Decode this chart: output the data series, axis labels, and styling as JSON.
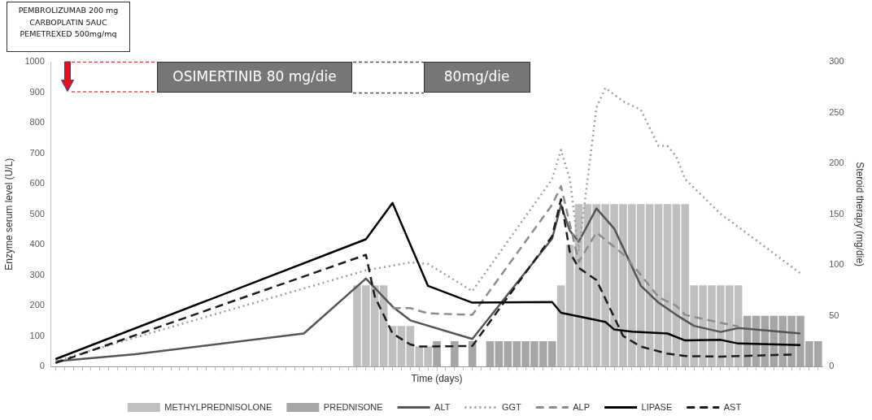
{
  "chart_data": {
    "type": "line",
    "xlabel": "Time (days)",
    "ylabel": "Enzyme serum level (U/L)",
    "y2label": "Steroid therapy (mg/die)",
    "annotations": [
      "PEMBROLIZUMAB 200 mg\nCARBOPLATIN 5AUC\nPEMETREXED 500mg/mq",
      "OSIMERTINIB 80 mg/die",
      "80mg/die"
    ],
    "categories": [
      null,
      null,
      null,
      null,
      null,
      null,
      null,
      null,
      null,
      null,
      null,
      null,
      null,
      null,
      null,
      null,
      null,
      null,
      null,
      null,
      null,
      null,
      null,
      null,
      null,
      null,
      null,
      null,
      null,
      null,
      null,
      null,
      null,
      null,
      null,
      null,
      null,
      null,
      null,
      null,
      null,
      null,
      null,
      null,
      null,
      null,
      null,
      null,
      null,
      null,
      null,
      null,
      null,
      null,
      null,
      null,
      null,
      null,
      null,
      null,
      null,
      null,
      null,
      null,
      null,
      null,
      null,
      null,
      null,
      null,
      null,
      null,
      null,
      null,
      null,
      null,
      null,
      null,
      null,
      null,
      null,
      null,
      null,
      null,
      null,
      null,
      null
    ],
    "ylim": [
      0,
      1000
    ],
    "yticks": [
      0,
      100,
      200,
      300,
      400,
      500,
      600,
      700,
      800,
      900,
      1000
    ],
    "y2lim": [
      0,
      300
    ],
    "y2ticks": [
      0,
      50,
      100,
      150,
      200,
      250,
      300
    ],
    "grid": false,
    "legend": "bottom",
    "tick_labels": "y",
    "marker": "none",
    "series": [
      {
        "name": "METHYLPREDNISOLONE",
        "type": "bar",
        "axis": "y2",
        "color": "#bfbfbf",
        "values": [
          null,
          null,
          null,
          null,
          null,
          null,
          null,
          null,
          null,
          null,
          null,
          null,
          null,
          null,
          null,
          null,
          null,
          null,
          null,
          null,
          null,
          null,
          null,
          null,
          null,
          null,
          null,
          null,
          null,
          null,
          null,
          null,
          null,
          null,
          80,
          80,
          80,
          80,
          40,
          40,
          40,
          20,
          20,
          null,
          null,
          null,
          null,
          null,
          null,
          null,
          null,
          null,
          null,
          null,
          null,
          null,
          null,
          80,
          120,
          160,
          160,
          160,
          160,
          160,
          160,
          160,
          160,
          160,
          160,
          160,
          160,
          160,
          80,
          80,
          80,
          80,
          80,
          80,
          null,
          null,
          null,
          null,
          null,
          null,
          null,
          null,
          null
        ]
      },
      {
        "name": "PREDNISONE",
        "type": "bar",
        "axis": "y2",
        "color": "#a6a6a6",
        "values": [
          null,
          null,
          null,
          null,
          null,
          null,
          null,
          null,
          null,
          null,
          null,
          null,
          null,
          null,
          null,
          null,
          null,
          null,
          null,
          null,
          null,
          null,
          null,
          null,
          null,
          null,
          null,
          null,
          null,
          null,
          null,
          null,
          null,
          null,
          null,
          null,
          null,
          null,
          null,
          null,
          null,
          null,
          null,
          25,
          null,
          25,
          null,
          25,
          null,
          25,
          25,
          25,
          25,
          25,
          25,
          25,
          25,
          null,
          null,
          null,
          null,
          null,
          null,
          null,
          null,
          null,
          null,
          null,
          null,
          null,
          null,
          null,
          null,
          null,
          null,
          null,
          null,
          null,
          50,
          50,
          50,
          50,
          50,
          50,
          50,
          25,
          25
        ]
      },
      {
        "name": "ALT",
        "type": "line",
        "line_style": "solid",
        "color": "#555555",
        "values": [
          18,
          null,
          null,
          null,
          null,
          null,
          null,
          null,
          null,
          41,
          null,
          null,
          null,
          null,
          null,
          null,
          null,
          null,
          null,
          null,
          null,
          null,
          null,
          null,
          null,
          null,
          null,
          null,
          109,
          null,
          null,
          null,
          null,
          null,
          null,
          289,
          null,
          null,
          197,
          null,
          152,
          null,
          null,
          null,
          null,
          null,
          null,
          91,
          null,
          null,
          null,
          null,
          null,
          null,
          null,
          null,
          420,
          530,
          446,
          410,
          null,
          519,
          null,
          453,
          null,
          null,
          266,
          null,
          210,
          null,
          170,
          null,
          134,
          null,
          null,
          114,
          null,
          127,
          null,
          null,
          null,
          null,
          null,
          null,
          109,
          null,
          null
        ]
      },
      {
        "name": "GGT",
        "type": "line",
        "line_style": "dotted",
        "color": "#9e9e9e",
        "values": [
          18,
          null,
          null,
          null,
          null,
          null,
          null,
          null,
          null,
          96,
          null,
          null,
          null,
          null,
          null,
          null,
          null,
          null,
          null,
          null,
          null,
          null,
          null,
          null,
          null,
          null,
          null,
          null,
          null,
          null,
          null,
          null,
          null,
          null,
          null,
          316,
          null,
          null,
          null,
          null,
          342,
          null,
          337,
          null,
          null,
          null,
          null,
          248,
          null,
          null,
          null,
          null,
          null,
          null,
          null,
          null,
          615,
          711,
          615,
          380,
          null,
          850,
          914,
          null,
          870,
          null,
          843,
          null,
          724,
          724,
          689,
          615,
          null,
          null,
          null,
          501,
          null,
          null,
          null,
          415,
          null,
          null,
          null,
          null,
          306,
          null,
          null
        ]
      },
      {
        "name": "ALP",
        "type": "line",
        "line_style": "dashed",
        "color": "#8c8c8c",
        "values": [
          null,
          null,
          null,
          null,
          null,
          null,
          null,
          null,
          null,
          null,
          null,
          null,
          null,
          null,
          null,
          null,
          null,
          null,
          null,
          null,
          null,
          null,
          null,
          null,
          null,
          null,
          null,
          null,
          null,
          null,
          null,
          null,
          null,
          null,
          null,
          null,
          null,
          null,
          192,
          null,
          192,
          null,
          175,
          null,
          null,
          null,
          null,
          170,
          null,
          null,
          null,
          null,
          null,
          null,
          null,
          null,
          531,
          592,
          null,
          344,
          null,
          440,
          null,
          null,
          369,
          null,
          301,
          null,
          228,
          null,
          200,
          170,
          null,
          null,
          null,
          144,
          null,
          132,
          null,
          null,
          null,
          null,
          null,
          null,
          null,
          null,
          null
        ]
      },
      {
        "name": "LIPASE",
        "type": "line",
        "line_style": "solid",
        "color": "#000000",
        "values": [
          25,
          null,
          null,
          null,
          null,
          null,
          null,
          null,
          null,
          null,
          null,
          null,
          null,
          null,
          null,
          null,
          null,
          null,
          null,
          null,
          null,
          null,
          null,
          null,
          null,
          null,
          null,
          null,
          null,
          null,
          null,
          null,
          null,
          null,
          null,
          418,
          null,
          null,
          537,
          null,
          null,
          null,
          265,
          null,
          null,
          null,
          null,
          210,
          null,
          null,
          null,
          null,
          null,
          null,
          null,
          null,
          212,
          177,
          null,
          null,
          null,
          null,
          147,
          122,
          null,
          115,
          null,
          null,
          null,
          109,
          null,
          86,
          null,
          null,
          null,
          88,
          null,
          76,
          null,
          null,
          null,
          null,
          null,
          null,
          71,
          null,
          null
        ]
      },
      {
        "name": "AST",
        "type": "line",
        "line_style": "dashed",
        "color": "#1c1c1c",
        "values": [
          12,
          null,
          null,
          null,
          null,
          null,
          null,
          null,
          null,
          null,
          null,
          null,
          null,
          null,
          null,
          null,
          null,
          null,
          null,
          null,
          null,
          null,
          null,
          null,
          null,
          null,
          null,
          null,
          null,
          null,
          null,
          null,
          null,
          null,
          null,
          367,
          230,
          null,
          109,
          null,
          73,
          66,
          null,
          null,
          null,
          null,
          null,
          68,
          null,
          null,
          null,
          null,
          null,
          null,
          null,
          null,
          428,
          549,
          375,
          324,
          null,
          284,
          null,
          null,
          101,
          null,
          66,
          null,
          null,
          43,
          null,
          35,
          null,
          null,
          null,
          33,
          null,
          null,
          null,
          null,
          null,
          null,
          null,
          40,
          null,
          null,
          null
        ]
      }
    ]
  }
}
